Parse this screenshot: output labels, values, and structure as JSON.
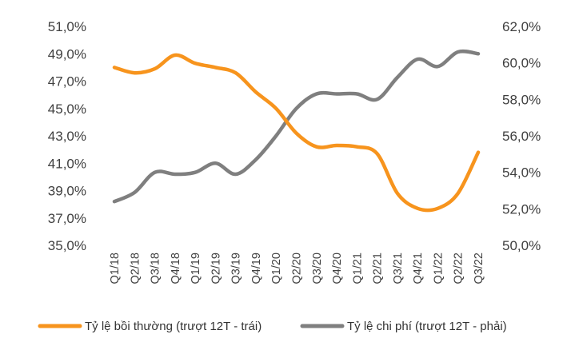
{
  "chart_data": {
    "type": "line",
    "title": "",
    "categories": [
      "Q1/18",
      "Q2/18",
      "Q3/18",
      "Q4/18",
      "Q1/19",
      "Q2/19",
      "Q3/19",
      "Q4/19",
      "Q1/20",
      "Q2/20",
      "Q3/20",
      "Q4/20",
      "Q1/21",
      "Q2/21",
      "Q3/21",
      "Q4/21",
      "Q1/22",
      "Q2/22",
      "Q3/22"
    ],
    "y_left": {
      "ylim": [
        35,
        51
      ],
      "ticks": [
        35,
        37,
        39,
        41,
        43,
        45,
        47,
        49,
        51
      ],
      "tick_labels": [
        "35,0%",
        "37,0%",
        "39,0%",
        "41,0%",
        "43,0%",
        "45,0%",
        "47,0%",
        "49,0%",
        "51,0%"
      ]
    },
    "y_right": {
      "ylim": [
        50,
        62
      ],
      "ticks": [
        50,
        52,
        54,
        56,
        58,
        60,
        62
      ],
      "tick_labels": [
        "50,0%",
        "52,0%",
        "54,0%",
        "56,0%",
        "58,0%",
        "60,0%",
        "62,0%"
      ]
    },
    "series": [
      {
        "name": "Tỷ lệ bồi thường (trượt 12T - trái)",
        "axis": "left",
        "color": "#F7941D",
        "values": [
          48.0,
          47.6,
          47.9,
          48.9,
          48.3,
          48.0,
          47.6,
          46.2,
          45.0,
          43.2,
          42.2,
          42.3,
          42.2,
          41.7,
          38.8,
          37.7,
          37.7,
          38.8,
          41.8
        ]
      },
      {
        "name": "Tỷ lệ chi phí (trượt 12T - phải)",
        "axis": "right",
        "color": "#7F7F7F",
        "values": [
          52.4,
          52.9,
          54.0,
          53.9,
          54.0,
          54.5,
          53.9,
          54.7,
          56.0,
          57.5,
          58.3,
          58.3,
          58.3,
          58.0,
          59.2,
          60.2,
          59.8,
          60.6,
          60.5
        ]
      }
    ],
    "legend": {
      "position": "bottom",
      "items": [
        "Tỷ lệ bồi thường (trượt 12T - trái)",
        "Tỷ lệ chi phí (trượt 12T - phải)"
      ]
    }
  }
}
